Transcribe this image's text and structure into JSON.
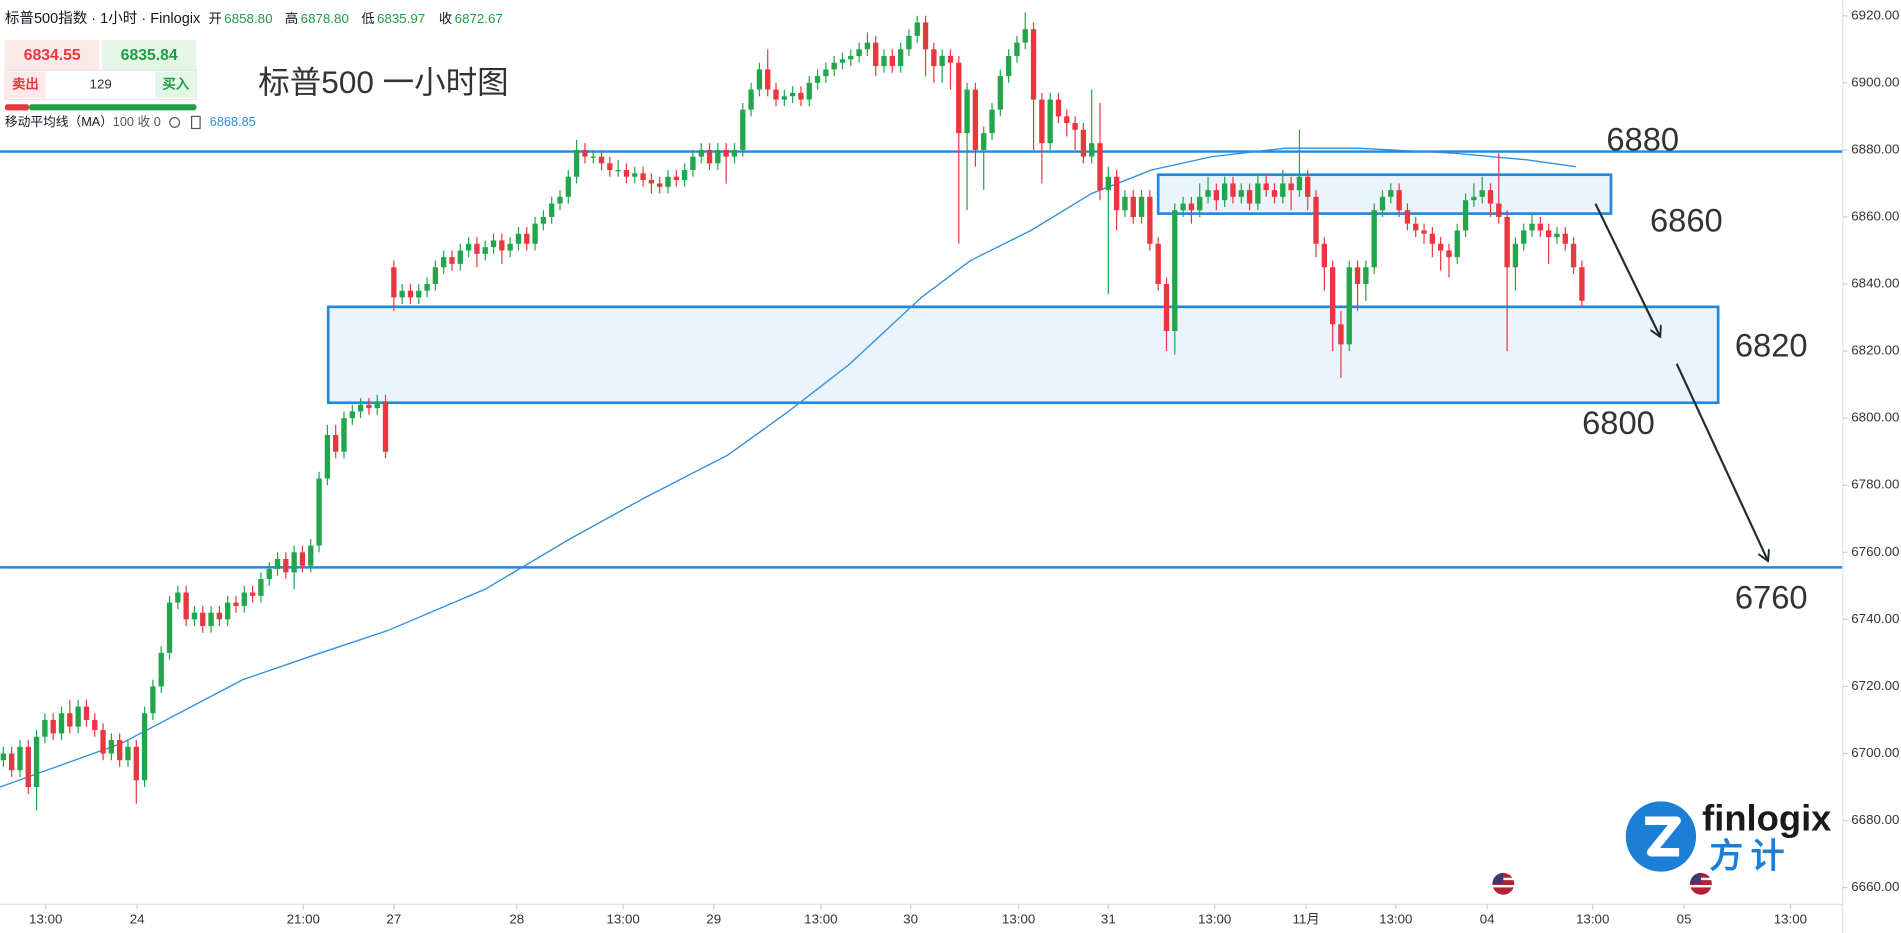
{
  "header": {
    "title": "标普500指数 · 1小时 · Finlogix",
    "ohlc": [
      {
        "label": "开",
        "value": "6858.80"
      },
      {
        "label": "高",
        "value": "6878.80"
      },
      {
        "label": "低",
        "value": "6835.97"
      },
      {
        "label": "收",
        "value": "6872.67"
      }
    ]
  },
  "quote": {
    "sell_price": "6834.55",
    "buy_price": "6835.84",
    "sell": "卖出",
    "spread": "129",
    "buy": "买入"
  },
  "indicator": {
    "name": "移动平均线（MA）",
    "params": "100 收 0",
    "value": "6868.85"
  },
  "logo": {
    "en": "finlogix",
    "zh": "方计"
  },
  "chart_data": {
    "type": "candlestick",
    "title": "标普500 一小时图",
    "up_color": "#22a64b",
    "down_color": "#e8373e",
    "xlim": [
      -0.4,
      221.4
    ],
    "ylim": [
      6655,
      6922
    ],
    "yticks": [
      {
        "value": 6660,
        "label": "6660.00"
      },
      {
        "value": 6680,
        "label": "6680.00"
      },
      {
        "value": 6700,
        "label": "6700.00"
      },
      {
        "value": 6720,
        "label": "6720.00"
      },
      {
        "value": 6740,
        "label": "6740.00"
      },
      {
        "value": 6760,
        "label": "6760.00"
      },
      {
        "value": 6780,
        "label": "6780.00"
      },
      {
        "value": 6800,
        "label": "6800.00"
      },
      {
        "value": 6820,
        "label": "6820.00"
      },
      {
        "value": 6840,
        "label": "6840.00"
      },
      {
        "value": 6860,
        "label": "6860.00"
      },
      {
        "value": 6880,
        "label": "6880.00"
      },
      {
        "value": 6900,
        "label": "6900.00"
      },
      {
        "value": 6920,
        "label": "6920.00"
      }
    ],
    "xticks": [
      {
        "value": 5.1,
        "label": "13:00"
      },
      {
        "value": 16.1,
        "label": "24"
      },
      {
        "value": 36.1,
        "label": "21:00"
      },
      {
        "value": 47,
        "label": "27"
      },
      {
        "value": 61.8,
        "label": "28"
      },
      {
        "value": 74.6,
        "label": "13:00"
      },
      {
        "value": 85.5,
        "label": "29"
      },
      {
        "value": 98.4,
        "label": "13:00"
      },
      {
        "value": 109.2,
        "label": "30"
      },
      {
        "value": 122.2,
        "label": "13:00"
      },
      {
        "value": 133,
        "label": "31"
      },
      {
        "value": 145.8,
        "label": "13:00"
      },
      {
        "value": 156.8,
        "label": "11月"
      },
      {
        "value": 167.6,
        "label": "13:00"
      },
      {
        "value": 178.6,
        "label": "04"
      },
      {
        "value": 191.3,
        "label": "13:00"
      },
      {
        "value": 202.3,
        "label": "05"
      },
      {
        "value": 215.1,
        "label": "13:00"
      }
    ],
    "ohlc": [
      [
        6698,
        6702,
        6696,
        6700
      ],
      [
        6700,
        6702,
        6693,
        6695
      ],
      [
        6695,
        6704,
        6693,
        6702
      ],
      [
        6702,
        6704,
        6688,
        6690
      ],
      [
        6690,
        6707,
        6683,
        6705
      ],
      [
        6705,
        6712,
        6703,
        6710
      ],
      [
        6710,
        6712,
        6704,
        6706
      ],
      [
        6706,
        6714,
        6704,
        6712
      ],
      [
        6712,
        6716,
        6706,
        6708
      ],
      [
        6708,
        6716,
        6706,
        6714
      ],
      [
        6714,
        6716,
        6708,
        6710
      ],
      [
        6710,
        6712,
        6705,
        6707
      ],
      [
        6707,
        6709,
        6698,
        6700
      ],
      [
        6700,
        6706,
        6698,
        6704
      ],
      [
        6704,
        6706,
        6696,
        6698
      ],
      [
        6698,
        6704,
        6696,
        6702
      ],
      [
        6702,
        6704,
        6685,
        6692
      ],
      [
        6692,
        6714,
        6690,
        6712
      ],
      [
        6712,
        6722,
        6710,
        6720
      ],
      [
        6720,
        6732,
        6718,
        6730
      ],
      [
        6730,
        6747,
        6728,
        6745
      ],
      [
        6745,
        6750,
        6743,
        6748
      ],
      [
        6748,
        6750,
        6738,
        6740
      ],
      [
        6740,
        6744,
        6738,
        6742
      ],
      [
        6742,
        6744,
        6736,
        6738
      ],
      [
        6738,
        6744,
        6736,
        6742
      ],
      [
        6742,
        6744,
        6738,
        6740
      ],
      [
        6740,
        6747,
        6738,
        6745
      ],
      [
        6745,
        6747,
        6742,
        6744
      ],
      [
        6744,
        6750,
        6742,
        6748
      ],
      [
        6748,
        6750,
        6745,
        6747
      ],
      [
        6747,
        6754,
        6745,
        6752
      ],
      [
        6752,
        6757,
        6750,
        6755
      ],
      [
        6755,
        6760,
        6753,
        6758
      ],
      [
        6758,
        6760,
        6752,
        6754
      ],
      [
        6754,
        6762,
        6749,
        6760
      ],
      [
        6760,
        6762,
        6754,
        6756
      ],
      [
        6756,
        6764,
        6754,
        6762
      ],
      [
        6762,
        6784,
        6760,
        6782
      ],
      [
        6782,
        6798,
        6780,
        6795
      ],
      [
        6795,
        6798,
        6788,
        6790
      ],
      [
        6790,
        6802,
        6788,
        6800
      ],
      [
        6800,
        6804,
        6798,
        6802
      ],
      [
        6802,
        6806,
        6800,
        6804
      ],
      [
        6804,
        6806,
        6801,
        6803
      ],
      [
        6803,
        6807,
        6801,
        6805
      ],
      [
        6805,
        6807,
        6788,
        6790
      ],
      [
        6845,
        6847,
        6832,
        6836
      ],
      [
        6836,
        6840,
        6834,
        6838
      ],
      [
        6838,
        6840,
        6834,
        6836
      ],
      [
        6836,
        6840,
        6834,
        6838
      ],
      [
        6838,
        6842,
        6836,
        6840
      ],
      [
        6840,
        6847,
        6838,
        6845
      ],
      [
        6845,
        6850,
        6843,
        6848
      ],
      [
        6848,
        6850,
        6844,
        6846
      ],
      [
        6846,
        6852,
        6844,
        6850
      ],
      [
        6850,
        6854,
        6848,
        6852
      ],
      [
        6852,
        6854,
        6845,
        6849
      ],
      [
        6849,
        6853,
        6847,
        6851
      ],
      [
        6851,
        6855,
        6849,
        6853
      ],
      [
        6853,
        6855,
        6846,
        6850
      ],
      [
        6850,
        6854,
        6848,
        6852
      ],
      [
        6852,
        6857,
        6850,
        6855
      ],
      [
        6855,
        6857,
        6850,
        6852
      ],
      [
        6852,
        6860,
        6850,
        6858
      ],
      [
        6858,
        6862,
        6856,
        6860
      ],
      [
        6860,
        6866,
        6858,
        6864
      ],
      [
        6864,
        6868,
        6862,
        6866
      ],
      [
        6866,
        6874,
        6864,
        6872
      ],
      [
        6872,
        6883,
        6870,
        6880
      ],
      [
        6880,
        6882,
        6876,
        6878
      ],
      [
        6878,
        6880,
        6876,
        6878
      ],
      [
        6878,
        6880,
        6874,
        6876
      ],
      [
        6876,
        6878,
        6872,
        6874
      ],
      [
        6874,
        6877,
        6872,
        6874
      ],
      [
        6874,
        6876,
        6870,
        6872
      ],
      [
        6872,
        6875,
        6870,
        6873
      ],
      [
        6873,
        6875,
        6869,
        6871
      ],
      [
        6871,
        6873,
        6867,
        6870
      ],
      [
        6870,
        6872,
        6867,
        6869
      ],
      [
        6869,
        6874,
        6867,
        6872
      ],
      [
        6872,
        6874,
        6869,
        6871
      ],
      [
        6871,
        6876,
        6869,
        6874
      ],
      [
        6874,
        6880,
        6872,
        6878
      ],
      [
        6878,
        6882,
        6876,
        6880
      ],
      [
        6880,
        6882,
        6874,
        6876
      ],
      [
        6876,
        6882,
        6874,
        6880
      ],
      [
        6880,
        6882,
        6870,
        6878
      ],
      [
        6878,
        6882,
        6876,
        6880
      ],
      [
        6880,
        6894,
        6878,
        6892
      ],
      [
        6892,
        6900,
        6890,
        6898
      ],
      [
        6898,
        6906,
        6896,
        6904
      ],
      [
        6904,
        6910,
        6896,
        6898
      ],
      [
        6898,
        6900,
        6893,
        6895
      ],
      [
        6895,
        6898,
        6893,
        6896
      ],
      [
        6896,
        6899,
        6894,
        6897
      ],
      [
        6897,
        6899,
        6893,
        6895
      ],
      [
        6895,
        6902,
        6893,
        6900
      ],
      [
        6900,
        6904,
        6898,
        6902
      ],
      [
        6902,
        6906,
        6900,
        6904
      ],
      [
        6904,
        6908,
        6902,
        6906
      ],
      [
        6906,
        6909,
        6904,
        6907
      ],
      [
        6907,
        6910,
        6905,
        6908
      ],
      [
        6908,
        6912,
        6906,
        6910
      ],
      [
        6910,
        6915,
        6908,
        6912
      ],
      [
        6912,
        6914,
        6902,
        6905
      ],
      [
        6905,
        6910,
        6903,
        6908
      ],
      [
        6908,
        6910,
        6903,
        6905
      ],
      [
        6905,
        6912,
        6903,
        6910
      ],
      [
        6910,
        6916,
        6908,
        6914
      ],
      [
        6914,
        6920,
        6912,
        6918
      ],
      [
        6918,
        6920,
        6902,
        6910
      ],
      [
        6910,
        6912,
        6900,
        6905
      ],
      [
        6905,
        6910,
        6900,
        6908
      ],
      [
        6908,
        6910,
        6898,
        6906
      ],
      [
        6906,
        6908,
        6852,
        6885
      ],
      [
        6885,
        6900,
        6862,
        6898
      ],
      [
        6898,
        6900,
        6875,
        6880
      ],
      [
        6880,
        6887,
        6868,
        6885
      ],
      [
        6885,
        6894,
        6883,
        6892
      ],
      [
        6892,
        6904,
        6890,
        6902
      ],
      [
        6902,
        6910,
        6900,
        6908
      ],
      [
        6908,
        6914,
        6906,
        6912
      ],
      [
        6912,
        6921,
        6910,
        6916
      ],
      [
        6916,
        6918,
        6880,
        6895
      ],
      [
        6895,
        6897,
        6870,
        6882
      ],
      [
        6882,
        6897,
        6880,
        6895
      ],
      [
        6895,
        6897,
        6888,
        6890
      ],
      [
        6890,
        6892,
        6884,
        6888
      ],
      [
        6888,
        6890,
        6880,
        6886
      ],
      [
        6886,
        6888,
        6876,
        6878
      ],
      [
        6878,
        6898,
        6876,
        6882
      ],
      [
        6882,
        6894,
        6865,
        6868
      ],
      [
        6868,
        6875,
        6837,
        6872
      ],
      [
        6872,
        6874,
        6856,
        6862
      ],
      [
        6862,
        6868,
        6860,
        6866
      ],
      [
        6866,
        6868,
        6858,
        6860
      ],
      [
        6860,
        6868,
        6858,
        6866
      ],
      [
        6866,
        6868,
        6850,
        6852
      ],
      [
        6852,
        6854,
        6838,
        6840
      ],
      [
        6840,
        6842,
        6820,
        6826
      ],
      [
        6826,
        6864,
        6819,
        6862
      ],
      [
        6862,
        6866,
        6860,
        6864
      ],
      [
        6864,
        6866,
        6858,
        6862
      ],
      [
        6862,
        6870,
        6860,
        6866
      ],
      [
        6866,
        6872,
        6864,
        6868
      ],
      [
        6868,
        6870,
        6862,
        6865
      ],
      [
        6865,
        6872,
        6863,
        6870
      ],
      [
        6870,
        6872,
        6864,
        6866
      ],
      [
        6866,
        6870,
        6864,
        6868
      ],
      [
        6868,
        6870,
        6862,
        6864
      ],
      [
        6864,
        6873,
        6862,
        6870
      ],
      [
        6870,
        6873,
        6866,
        6868
      ],
      [
        6868,
        6870,
        6864,
        6866
      ],
      [
        6866,
        6874,
        6864,
        6870
      ],
      [
        6870,
        6872,
        6862,
        6868
      ],
      [
        6868,
        6886,
        6866,
        6872
      ],
      [
        6872,
        6874,
        6862,
        6866
      ],
      [
        6866,
        6868,
        6848,
        6852
      ],
      [
        6852,
        6854,
        6838,
        6845
      ],
      [
        6845,
        6847,
        6820,
        6828
      ],
      [
        6828,
        6832,
        6812,
        6822
      ],
      [
        6822,
        6847,
        6820,
        6845
      ],
      [
        6845,
        6847,
        6832,
        6840
      ],
      [
        6840,
        6847,
        6835,
        6845
      ],
      [
        6845,
        6864,
        6843,
        6862
      ],
      [
        6862,
        6868,
        6860,
        6866
      ],
      [
        6866,
        6870,
        6864,
        6868
      ],
      [
        6868,
        6870,
        6860,
        6862
      ],
      [
        6862,
        6864,
        6856,
        6858
      ],
      [
        6858,
        6860,
        6854,
        6856
      ],
      [
        6856,
        6858,
        6852,
        6855
      ],
      [
        6855,
        6857,
        6848,
        6852
      ],
      [
        6852,
        6854,
        6844,
        6850
      ],
      [
        6850,
        6852,
        6842,
        6848
      ],
      [
        6848,
        6858,
        6846,
        6856
      ],
      [
        6856,
        6867,
        6854,
        6865
      ],
      [
        6865,
        6870,
        6863,
        6866
      ],
      [
        6866,
        6872,
        6864,
        6868
      ],
      [
        6868,
        6870,
        6860,
        6864
      ],
      [
        6864,
        6879,
        6858,
        6860
      ],
      [
        6860,
        6862,
        6820,
        6845
      ],
      [
        6845,
        6854,
        6838,
        6852
      ],
      [
        6852,
        6858,
        6850,
        6856
      ],
      [
        6856,
        6861,
        6854,
        6858
      ],
      [
        6858,
        6860,
        6854,
        6856
      ],
      [
        6856,
        6858,
        6846,
        6854
      ],
      [
        6854,
        6857,
        6852,
        6855
      ],
      [
        6855,
        6857,
        6850,
        6852
      ],
      [
        6852,
        6854,
        6843,
        6845
      ],
      [
        6845,
        6847,
        6833,
        6835
      ]
    ],
    "ma": {
      "color": "#2f8fe0",
      "x": [
        -0.4,
        14.2,
        28.8,
        37.6,
        46.3,
        58,
        68.2,
        77,
        87.2,
        94.5,
        101.8,
        110.5,
        116.4,
        123.7,
        131,
        138.2,
        145.5,
        154.3,
        163,
        174.7,
        183.5,
        189.3
      ],
      "values": [
        6690,
        6703,
        6722,
        6729.5,
        6736.7,
        6749,
        6764,
        6776,
        6789,
        6802,
        6816,
        6836,
        6847,
        6856,
        6867,
        6874,
        6878,
        6880.5,
        6880.5,
        6879,
        6877,
        6875
      ]
    },
    "levels": [
      {
        "value": 6879.5,
        "color": "#1e88e5"
      },
      {
        "value": 6755.5,
        "color": "#1e88e5"
      }
    ],
    "zones": [
      {
        "x": [
          39.1,
          206.4
        ],
        "y": [
          6804.6,
          6833.2
        ],
        "color": "#1e88e5"
      },
      {
        "x": [
          139,
          193.5
        ],
        "y": [
          6861,
          6872.6
        ],
        "color": "#1e88e5"
      }
    ],
    "annotations": [
      "6880",
      "6860",
      "6820",
      "6800",
      "6760"
    ]
  }
}
